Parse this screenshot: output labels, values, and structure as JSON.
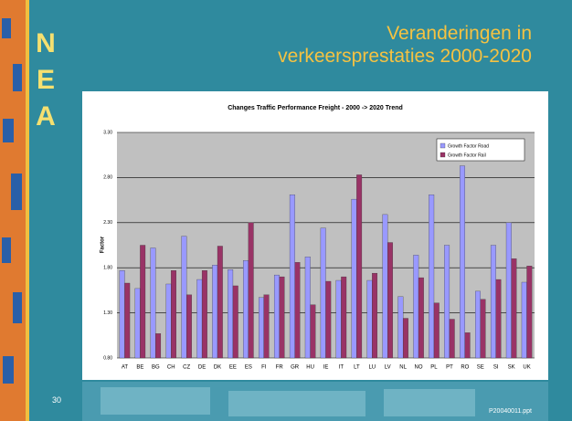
{
  "slide": {
    "logo": "NEA",
    "title": [
      "Veranderingen in",
      "verkeersprestaties 2000-2020"
    ],
    "page_number": "30",
    "file": "P20040011.ppt"
  },
  "chart_data": {
    "type": "bar",
    "title": "Changes Traffic Performance Freight - 2000 -> 2020 Trend",
    "y_label": "Factor",
    "categories": [
      "AT",
      "BE",
      "BG",
      "CH",
      "CZ",
      "DE",
      "DK",
      "EE",
      "ES",
      "FI",
      "FR",
      "GR",
      "HU",
      "IE",
      "IT",
      "LT",
      "LU",
      "LV",
      "NL",
      "NO",
      "PL",
      "PT",
      "RO",
      "SE",
      "SI",
      "SK",
      "UK"
    ],
    "series": [
      {
        "name": "Growth Factor Road",
        "color": "#9999ff",
        "values": [
          1.77,
          1.57,
          2.02,
          1.62,
          2.15,
          1.67,
          1.83,
          1.78,
          1.88,
          1.47,
          1.72,
          2.61,
          1.92,
          2.24,
          1.66,
          2.56,
          1.66,
          2.39,
          1.48,
          1.94,
          2.61,
          2.05,
          2.93,
          1.54,
          2.05,
          2.3,
          1.64
        ]
      },
      {
        "name": "Growth Factor Rail",
        "color": "#993366",
        "values": [
          1.63,
          2.05,
          1.07,
          1.77,
          1.5,
          1.77,
          2.04,
          1.6,
          2.3,
          1.5,
          1.7,
          1.86,
          1.39,
          1.65,
          1.7,
          2.83,
          1.74,
          2.08,
          1.24,
          1.69,
          1.41,
          1.23,
          1.08,
          1.45,
          1.67,
          1.9,
          1.82
        ]
      }
    ],
    "ylim": [
      0.8,
      3.3
    ],
    "yticks": [
      {
        "value": 0.8,
        "label": "0.80"
      },
      {
        "value": 1.3,
        "label": "1.30"
      },
      {
        "value": 1.8,
        "label": "1.80"
      },
      {
        "value": 2.3,
        "label": "2.30"
      },
      {
        "value": 2.8,
        "label": "2.80"
      },
      {
        "value": 3.3,
        "label": "3.30"
      }
    ],
    "grid": true,
    "legend": "top-right"
  }
}
